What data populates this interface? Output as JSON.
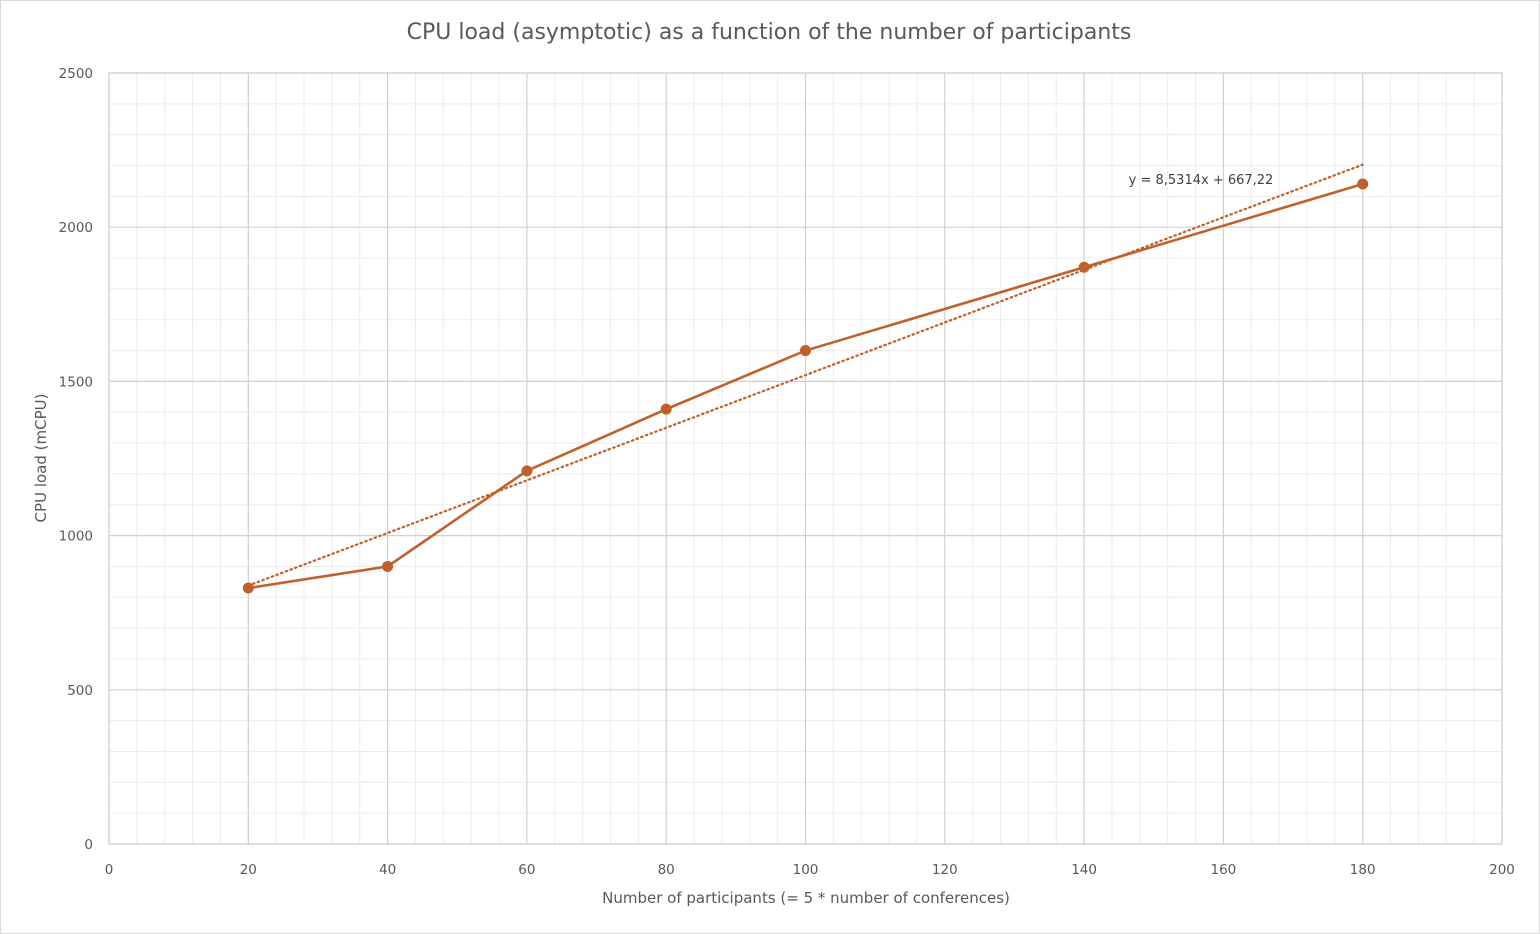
{
  "chart_data": {
    "type": "scatter",
    "title": "CPU load (asymptotic) as a function of the number of participants",
    "xlabel": "Number of participants (= 5 * number of conferences)",
    "ylabel": "CPU load (mCPU)",
    "xlim": [
      0,
      200
    ],
    "ylim": [
      0,
      2500
    ],
    "xticks": [
      0,
      20,
      40,
      60,
      80,
      100,
      120,
      140,
      160,
      180,
      200
    ],
    "yticks": [
      0,
      500,
      1000,
      1500,
      2000,
      2500
    ],
    "x_minor_step": 4,
    "y_minor_step": 100,
    "grid": true,
    "legend": "none",
    "series": [
      {
        "style": "line-markers",
        "color": "#C0602A",
        "x": [
          20,
          40,
          60,
          80,
          100,
          140,
          180
        ],
        "y": [
          830,
          900,
          1210,
          1410,
          1600,
          1870,
          2140
        ]
      }
    ],
    "trendline": {
      "type": "linear",
      "style": "dotted",
      "color": "#C0602A",
      "slope": 8.5314,
      "intercept": 667.22,
      "x_range": [
        20,
        180
      ],
      "label": "y = 8,5314x + 667,22"
    },
    "colors": {
      "major_grid": "#d0d0d0",
      "minor_grid": "#ececec",
      "text": "#595959"
    }
  }
}
